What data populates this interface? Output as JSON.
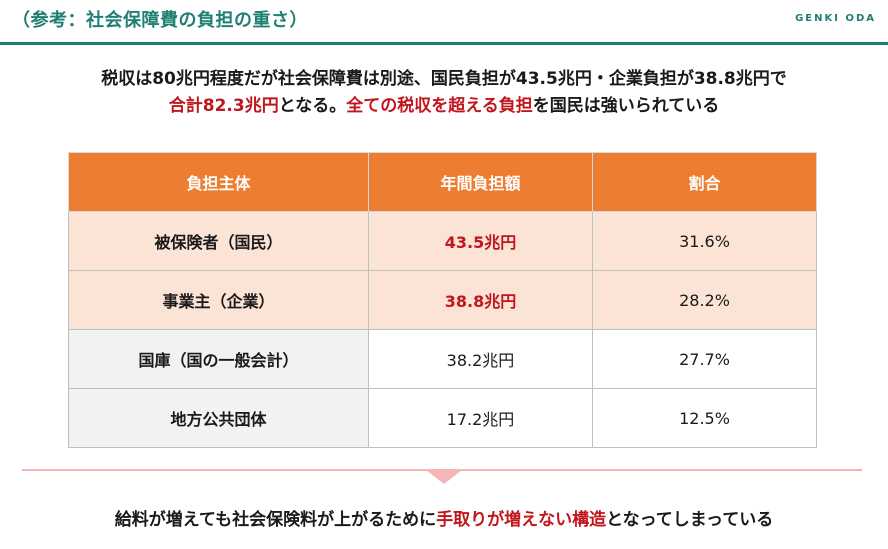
{
  "header": {
    "title": "（参考：社会保障費の負担の重さ）",
    "brand": "GENKI ODA",
    "accent_color": "#1f7f74"
  },
  "lead": {
    "line1": "税収は80兆円程度だが社会保障費は別途、国民負担が43.5兆円・企業負担が38.8兆円で",
    "line2_red1": "合計82.3兆円",
    "line2_mid": "となる。",
    "line2_red2": "全ての税収を超える負担",
    "line2_end": "を国民は強いられている"
  },
  "table": {
    "headers": [
      "負担主体",
      "年間負担額",
      "割合"
    ],
    "rows": [
      {
        "label": "被保険者（国民）",
        "amount": "43.5兆円",
        "share": "31.6%"
      },
      {
        "label": "事業主（企業）",
        "amount": "38.8兆円",
        "share": "28.2%"
      },
      {
        "label": "国庫（国の一般会計）",
        "amount": "38.2兆円",
        "share": "27.7%"
      },
      {
        "label": "地方公共団体",
        "amount": "17.2兆円",
        "share": "12.5%"
      }
    ],
    "header_color": "#ed7d31",
    "highlight_row_color": "#fbe3d6"
  },
  "conclusion": {
    "before": "給料が増えても社会保険料が上がるために",
    "red": "手取りが増えない構造",
    "after": "となってしまっている"
  }
}
